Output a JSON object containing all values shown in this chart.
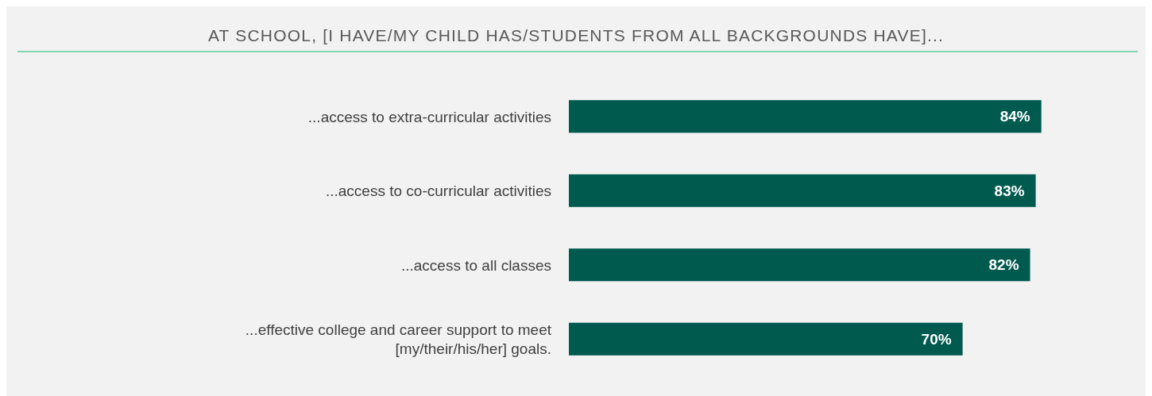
{
  "chart_data": {
    "type": "bar",
    "orientation": "horizontal",
    "title": "AT SCHOOL, [I HAVE/MY CHILD HAS/STUDENTS FROM ALL BACKGROUNDS HAVE]...",
    "categories": [
      "...access to extra-curricular activities",
      "...access to co-curricular activities",
      "...access to all classes",
      "...effective college and career support to meet [my/their/his/her] goals."
    ],
    "values": [
      84,
      83,
      82,
      70
    ],
    "value_labels": [
      "84%",
      "83%",
      "82%",
      "70%"
    ],
    "color": "#005a4e"
  }
}
